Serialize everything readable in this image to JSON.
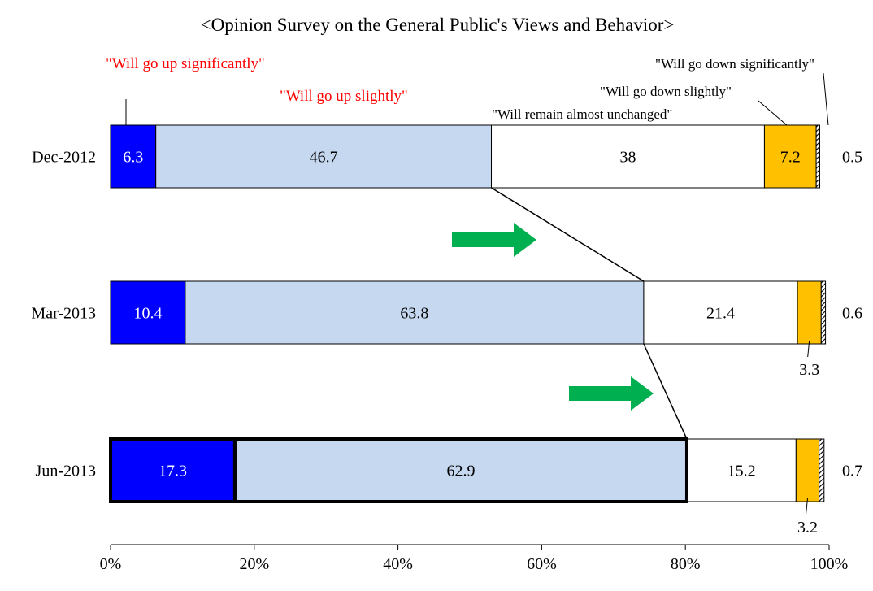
{
  "chart_data": {
    "type": "bar",
    "orientation": "horizontal",
    "stacked": true,
    "title": "<Opinion Survey on the General Public's Views and Behavior>",
    "categories": [
      "Dec-2012",
      "Mar-2013",
      "Jun-2013"
    ],
    "series": [
      {
        "name": "\"Will go up significantly\"",
        "color": "#0000ff",
        "values": [
          6.3,
          10.4,
          17.3
        ]
      },
      {
        "name": "\"Will go up slightly\"",
        "color": "#c5d8f0",
        "values": [
          46.7,
          63.8,
          62.9
        ]
      },
      {
        "name": "\"Will remain almost unchanged\"",
        "color": "#ffffff",
        "values": [
          38.0,
          21.4,
          15.2
        ]
      },
      {
        "name": "\"Will go down slightly\"",
        "color": "#ffc000",
        "values": [
          7.2,
          3.3,
          3.2
        ]
      },
      {
        "name": "\"Will go down significantly\"",
        "pattern": "diagonal-hatch",
        "values": [
          0.5,
          0.6,
          0.7
        ]
      }
    ],
    "x_ticks": [
      "0%",
      "20%",
      "40%",
      "60%",
      "80%",
      "100%"
    ],
    "xlim": [
      0,
      100
    ],
    "legend": "labels placed above first bar",
    "highlight": "Jun-2013 \"Will go up\" total outlined in bold",
    "annotations": "green arrows between bars; connector lines joining \"Will go up\" totals"
  }
}
